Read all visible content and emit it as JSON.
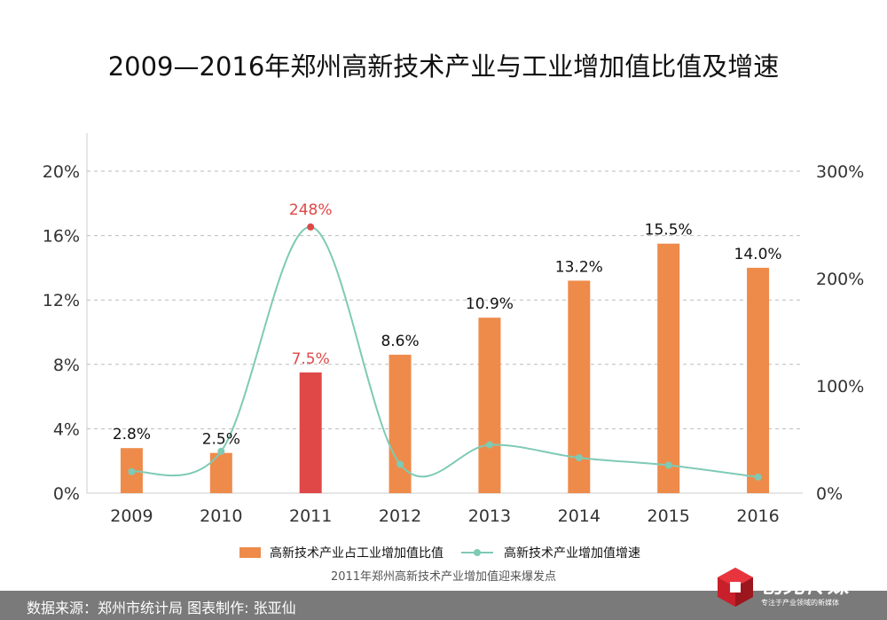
{
  "chart_data": {
    "type": "bar",
    "title": "2009—2016年郑州高新技术产业与工业增加值比值及增速",
    "categories": [
      "2009",
      "2010",
      "2011",
      "2012",
      "2013",
      "2014",
      "2015",
      "2016"
    ],
    "series": [
      {
        "name": "高新技术产业占工业增加值比值",
        "kind": "bar",
        "axis": "left",
        "values": [
          2.8,
          2.5,
          7.5,
          8.6,
          10.9,
          13.2,
          15.5,
          14.0
        ],
        "labels": [
          "2.8%",
          "2.5%",
          "7.5%",
          "8.6%",
          "10.9%",
          "13.2%",
          "15.5%",
          "14.0%"
        ],
        "color": "#ee8b4b",
        "highlight_index": 2,
        "highlight_color": "#e04848"
      },
      {
        "name": "高新技术产业增加值增速",
        "kind": "line",
        "axis": "right",
        "values": [
          20,
          39,
          248,
          27,
          45,
          33,
          26,
          15
        ],
        "labels": [
          "",
          "",
          "248%",
          "",
          "",
          "",
          "",
          ""
        ],
        "color": "#7ecab5",
        "highlight_index": 2,
        "highlight_color": "#e04848"
      }
    ],
    "y_left": {
      "min": 0,
      "max": 20,
      "ticks": [
        0,
        4,
        8,
        12,
        16,
        20
      ],
      "tick_labels": [
        "0%",
        "4%",
        "8%",
        "12%",
        "16%",
        "20%"
      ]
    },
    "y_right": {
      "min": 0,
      "max": 300,
      "ticks": [
        0,
        100,
        200,
        300
      ],
      "tick_labels": [
        "0%",
        "100%",
        "200%",
        "300%"
      ]
    },
    "grid": true,
    "legend_position": "bottom",
    "annotation": "2011年郑州高新技术产业增加值迎来爆发点"
  },
  "colors": {
    "bar": "#ee8b4b",
    "highlight": "#e04848",
    "line": "#7ecab5",
    "footer": "#7a7a7a",
    "grid": "#bbbbbb"
  },
  "footer": {
    "source": "数据来源：郑州市统计局  图表制作: 张亚仙",
    "brand_name": "创見传媒",
    "brand_slogan": "专注于产业领域的新媒体"
  }
}
